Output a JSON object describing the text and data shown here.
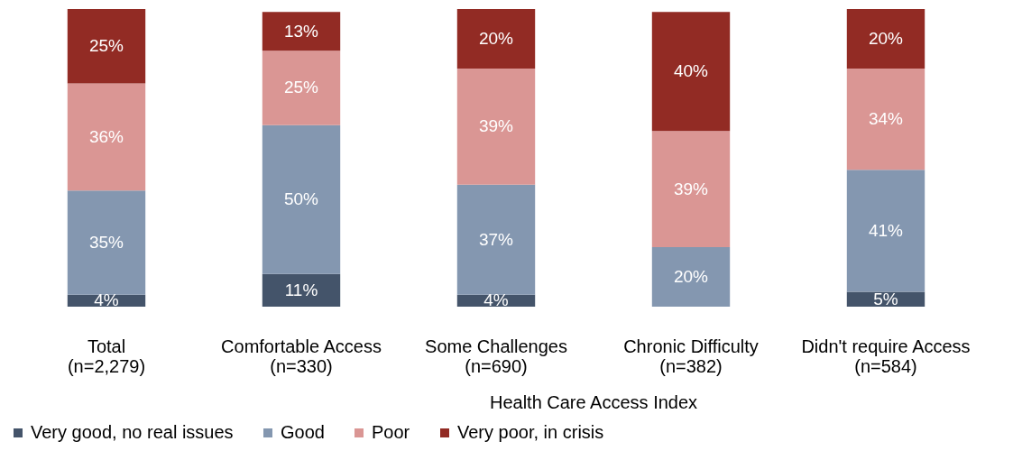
{
  "chart_data": {
    "type": "bar",
    "stacked": true,
    "xlabel": "Health Care Access Index",
    "categories": [
      "Total (n=2,279)",
      "Comfortable Access (n=330)",
      "Some Challenges (n=690)",
      "Chronic Difficulty (n=382)",
      "Didn't require Access (n=584)"
    ],
    "ylim": [
      0,
      100
    ],
    "tick_labels": "x",
    "legend": "bottom",
    "series": [
      {
        "name": "Very good, no real issues",
        "color": "#44546a",
        "values": [
          4,
          11,
          4,
          null,
          5
        ],
        "value_labels": [
          "4%",
          "11%",
          "4%",
          null,
          "5%"
        ]
      },
      {
        "name": "Good",
        "color": "#8497b0",
        "values": [
          35,
          50,
          37,
          20,
          41
        ],
        "value_labels": [
          "35%",
          "50%",
          "37%",
          "20%",
          "41%"
        ]
      },
      {
        "name": "Poor",
        "color": "#da9694",
        "values": [
          36,
          25,
          39,
          39,
          34
        ],
        "value_labels": [
          "36%",
          "25%",
          "39%",
          "39%",
          "34%"
        ]
      },
      {
        "name": "Very poor, in crisis",
        "color": "#922b24",
        "values": [
          25,
          13,
          20,
          40,
          20
        ],
        "value_labels": [
          "25%",
          "13%",
          "20%",
          "40%",
          "20%"
        ]
      }
    ]
  }
}
